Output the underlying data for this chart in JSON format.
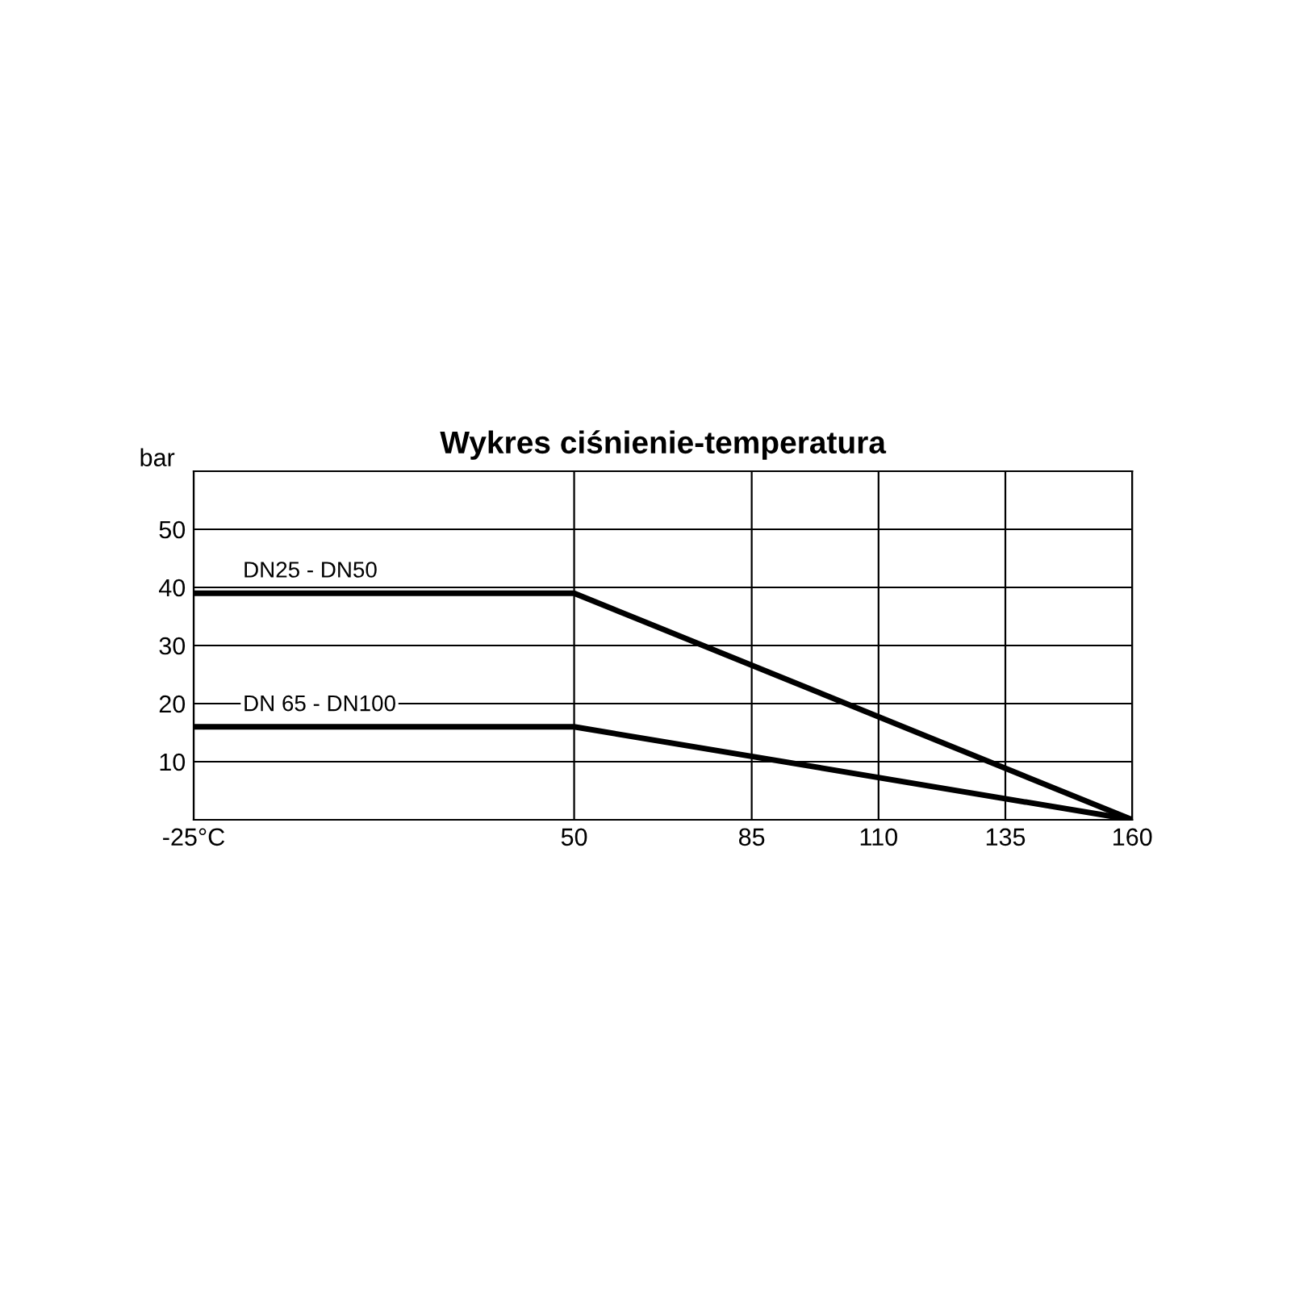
{
  "chart_data": {
    "type": "line",
    "title": "Wykres ciśnienie-temperatura",
    "ylabel": "bar",
    "series": [
      {
        "name": "DN25 - DN50",
        "color": "#000000",
        "x": [
          -25,
          50,
          160
        ],
        "values": [
          39,
          39,
          0
        ]
      },
      {
        "name": "DN 65 - DN100",
        "color": "#000000",
        "x": [
          -25,
          50,
          160
        ],
        "values": [
          16,
          16,
          0
        ]
      }
    ],
    "xlim": [
      -25,
      160
    ],
    "xticks": [
      {
        "value": -25,
        "label": "-25°C"
      },
      50,
      85,
      110,
      135,
      160
    ],
    "ylim": [
      0,
      60
    ],
    "yticks": [
      10,
      20,
      30,
      40,
      50
    ],
    "grid": true,
    "marker": "none",
    "line_style": "solid"
  }
}
